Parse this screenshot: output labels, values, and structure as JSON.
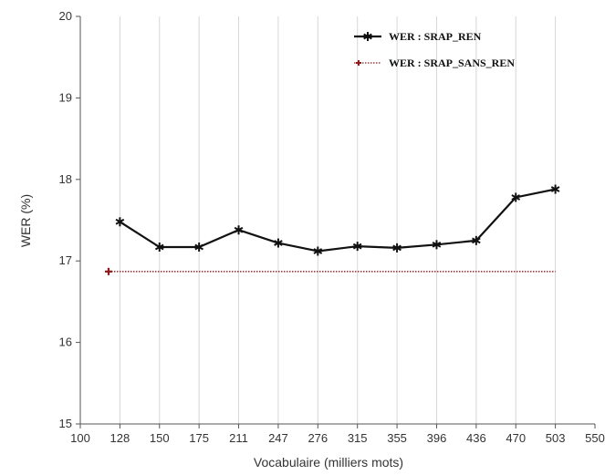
{
  "chart_data": {
    "type": "line",
    "xlabel": "Vocabulaire (milliers mots)",
    "ylabel": "WER (%)",
    "x_ticks": [
      "100",
      "128",
      "150",
      "175",
      "211",
      "247",
      "276",
      "315",
      "355",
      "396",
      "436",
      "470",
      "503",
      "550"
    ],
    "y_ticks": [
      "15",
      "16",
      "17",
      "18",
      "19",
      "20"
    ],
    "ylim": [
      15,
      20
    ],
    "grid": "vertical",
    "legend_position": "top-right",
    "series": [
      {
        "name": "WER : SRAP_REN",
        "color": "#111111",
        "marker": "star",
        "x": [
          "128",
          "150",
          "175",
          "211",
          "247",
          "276",
          "315",
          "355",
          "396",
          "436",
          "470",
          "503"
        ],
        "y": [
          17.48,
          17.17,
          17.17,
          17.38,
          17.22,
          17.12,
          17.18,
          17.16,
          17.2,
          17.25,
          17.78,
          17.88
        ]
      },
      {
        "name": "WER : SRAP_SANS_REN",
        "color": "#8b1a1a",
        "marker": "plus",
        "style": "dotted",
        "x_range": [
          120,
          503
        ],
        "y": 16.87
      }
    ]
  }
}
